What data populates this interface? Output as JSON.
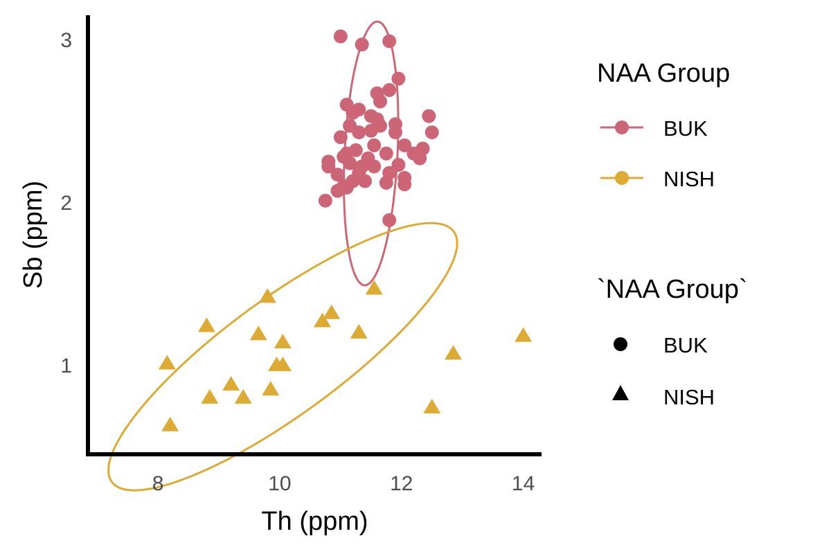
{
  "chart_data": {
    "type": "scatter",
    "xlabel": "Th (ppm)",
    "ylabel": "Sb (ppm)",
    "xlim": [
      6.85,
      14.3
    ],
    "ylim": [
      0.45,
      3.15
    ],
    "x_ticks": [
      "8",
      "10",
      "12",
      "14"
    ],
    "y_ticks": [
      "1",
      "2",
      "3"
    ],
    "grid": false,
    "legend_position": "right",
    "legends": [
      {
        "title": "NAA Group",
        "entries": [
          "BUK",
          "NISH"
        ]
      },
      {
        "title": "`NAA Group`",
        "entries": [
          "BUK",
          "NISH"
        ]
      }
    ],
    "series": [
      {
        "name": "BUK",
        "marker": "circle",
        "color": "#CC6677",
        "ellipse": {
          "cx": 11.5,
          "cy": 2.3,
          "rx": 0.82,
          "ry": 0.43,
          "angle_deg": 80
        },
        "points": [
          [
            11.0,
            3.02
          ],
          [
            11.35,
            2.97
          ],
          [
            11.8,
            2.99
          ],
          [
            11.95,
            2.76
          ],
          [
            11.8,
            2.69
          ],
          [
            11.6,
            2.67
          ],
          [
            11.65,
            2.62
          ],
          [
            11.1,
            2.6
          ],
          [
            11.3,
            2.57
          ],
          [
            11.5,
            2.53
          ],
          [
            11.2,
            2.55
          ],
          [
            11.6,
            2.51
          ],
          [
            12.45,
            2.53
          ],
          [
            11.15,
            2.47
          ],
          [
            11.65,
            2.47
          ],
          [
            11.9,
            2.48
          ],
          [
            11.9,
            2.43
          ],
          [
            11.3,
            2.43
          ],
          [
            12.5,
            2.43
          ],
          [
            11.0,
            2.4
          ],
          [
            10.8,
            2.22
          ],
          [
            11.3,
            2.18
          ],
          [
            11.1,
            2.3
          ],
          [
            11.45,
            2.27
          ],
          [
            11.35,
            2.22
          ],
          [
            11.05,
            2.28
          ],
          [
            11.15,
            2.24
          ],
          [
            10.95,
            2.17
          ],
          [
            11.2,
            2.13
          ],
          [
            11.55,
            2.35
          ],
          [
            11.75,
            2.3
          ],
          [
            12.05,
            2.35
          ],
          [
            12.35,
            2.33
          ],
          [
            12.2,
            2.3
          ],
          [
            11.55,
            2.22
          ],
          [
            11.95,
            2.23
          ],
          [
            11.8,
            2.18
          ],
          [
            12.3,
            2.27
          ],
          [
            11.05,
            2.1
          ],
          [
            11.4,
            2.13
          ],
          [
            11.75,
            2.12
          ],
          [
            12.05,
            2.15
          ],
          [
            12.05,
            2.11
          ],
          [
            10.95,
            2.07
          ],
          [
            11.1,
            2.09
          ],
          [
            10.75,
            2.01
          ],
          [
            11.8,
            1.89
          ],
          [
            10.8,
            2.25
          ],
          [
            11.25,
            2.32
          ],
          [
            11.5,
            2.44
          ]
        ]
      },
      {
        "name": "NISH",
        "marker": "triangle",
        "color": "#DDAA33",
        "ellipse": {
          "cx": 10.05,
          "cy": 1.05,
          "rx": 2.95,
          "ry": 0.42,
          "angle_deg": 14
        },
        "points": [
          [
            11.55,
            1.47
          ],
          [
            9.8,
            1.42
          ],
          [
            10.85,
            1.32
          ],
          [
            10.7,
            1.27
          ],
          [
            8.8,
            1.24
          ],
          [
            9.65,
            1.19
          ],
          [
            11.3,
            1.2
          ],
          [
            10.05,
            1.14
          ],
          [
            14.0,
            1.18
          ],
          [
            12.85,
            1.07
          ],
          [
            8.15,
            1.01
          ],
          [
            9.95,
            1.0
          ],
          [
            10.05,
            1.0
          ],
          [
            9.2,
            0.88
          ],
          [
            9.85,
            0.85
          ],
          [
            9.4,
            0.8
          ],
          [
            8.85,
            0.8
          ],
          [
            12.5,
            0.74
          ],
          [
            8.2,
            0.63
          ]
        ]
      }
    ]
  }
}
